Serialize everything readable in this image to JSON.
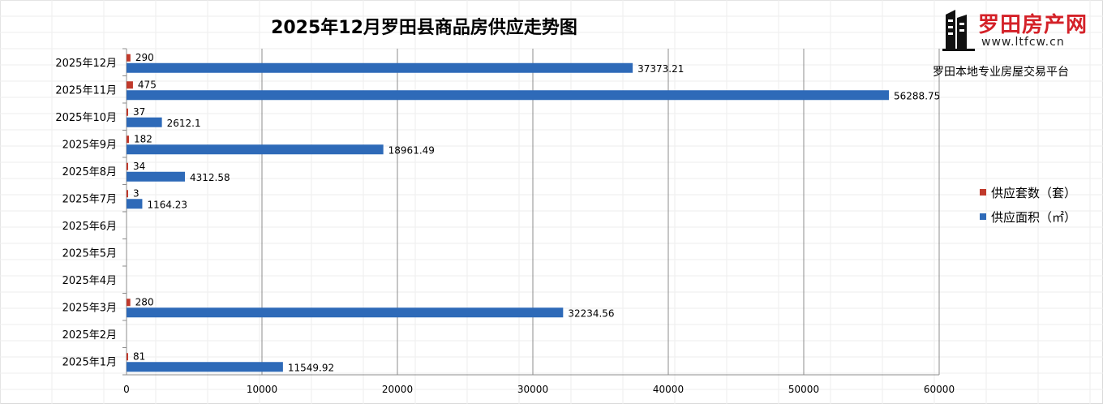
{
  "chart_data": {
    "type": "bar",
    "orientation": "horizontal",
    "title": "2025年12月罗田县商品房供应走势图",
    "categories": [
      "2025年12月",
      "2025年11月",
      "2025年10月",
      "2025年9月",
      "2025年8月",
      "2025年7月",
      "2025年6月",
      "2025年5月",
      "2025年4月",
      "2025年3月",
      "2025年2月",
      "2025年1月"
    ],
    "series": [
      {
        "name": "供应套数（套）",
        "color": "#c0392b",
        "values": [
          290,
          475,
          37,
          182,
          34,
          3,
          null,
          null,
          null,
          280,
          null,
          81
        ],
        "labels": [
          "290",
          "475",
          "37",
          "182",
          "34",
          "3",
          "",
          "",
          "",
          "280",
          "",
          "81"
        ]
      },
      {
        "name": "供应面积（㎡）",
        "color": "#2e6ab8",
        "values": [
          37373.21,
          56288.75,
          2612.1,
          18961.49,
          4312.58,
          1164.23,
          null,
          null,
          null,
          32234.56,
          null,
          11549.92
        ],
        "labels": [
          "37373.21",
          "56288.75",
          "2612.1",
          "18961.49",
          "4312.58",
          "1164.23",
          "",
          "",
          "",
          "32234.56",
          "",
          "11549.92"
        ]
      }
    ],
    "xlim": [
      0,
      60000
    ],
    "xticks": [
      "0",
      "10000",
      "20000",
      "30000",
      "40000",
      "50000",
      "60000"
    ],
    "grid": true,
    "legend_position": "right"
  },
  "logo": {
    "brand": "罗田房产网",
    "url": "www.ltfcw.cn",
    "slogan": "罗田本地专业房屋交易平台"
  }
}
